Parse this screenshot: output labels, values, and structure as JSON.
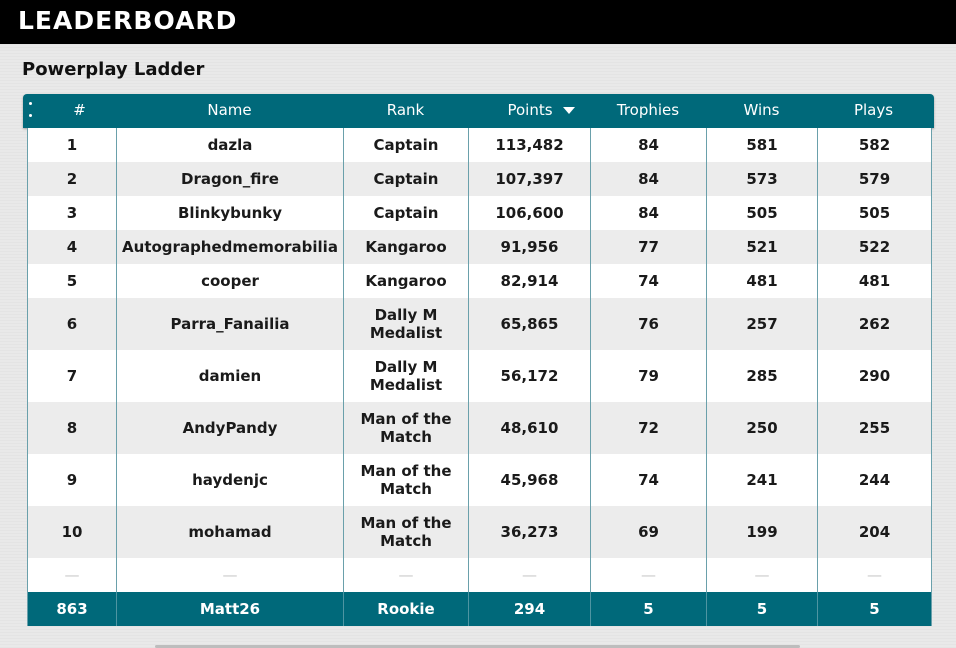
{
  "header": {
    "title": "LEADERBOARD"
  },
  "ladder": {
    "title": "Powerplay Ladder"
  },
  "table": {
    "columns": [
      "#",
      "Name",
      "Rank",
      "Points",
      "Trophies",
      "Wins",
      "Plays"
    ],
    "sorted_by": "Points",
    "rows": [
      {
        "pos": "1",
        "name": "dazla",
        "rank": "Captain",
        "points": "113,482",
        "trophies": "84",
        "wins": "581",
        "plays": "582"
      },
      {
        "pos": "2",
        "name": "Dragon_fire",
        "rank": "Captain",
        "points": "107,397",
        "trophies": "84",
        "wins": "573",
        "plays": "579"
      },
      {
        "pos": "3",
        "name": "Blinkybunky",
        "rank": "Captain",
        "points": "106,600",
        "trophies": "84",
        "wins": "505",
        "plays": "505"
      },
      {
        "pos": "4",
        "name": "Autographedmemorabilia",
        "rank": "Kangaroo",
        "points": "91,956",
        "trophies": "77",
        "wins": "521",
        "plays": "522"
      },
      {
        "pos": "5",
        "name": "cooper",
        "rank": "Kangaroo",
        "points": "82,914",
        "trophies": "74",
        "wins": "481",
        "plays": "481"
      },
      {
        "pos": "6",
        "name": "Parra_Fanailia",
        "rank": "Dally M Medalist",
        "points": "65,865",
        "trophies": "76",
        "wins": "257",
        "plays": "262"
      },
      {
        "pos": "7",
        "name": "damien",
        "rank": "Dally M Medalist",
        "points": "56,172",
        "trophies": "79",
        "wins": "285",
        "plays": "290"
      },
      {
        "pos": "8",
        "name": "AndyPandy",
        "rank": "Man of the Match",
        "points": "48,610",
        "trophies": "72",
        "wins": "250",
        "plays": "255"
      },
      {
        "pos": "9",
        "name": "haydenjc",
        "rank": "Man of the Match",
        "points": "45,968",
        "trophies": "74",
        "wins": "241",
        "plays": "244"
      },
      {
        "pos": "10",
        "name": "mohamad",
        "rank": "Man of the Match",
        "points": "36,273",
        "trophies": "69",
        "wins": "199",
        "plays": "204"
      }
    ],
    "separator": [
      "—",
      "—",
      "—",
      "—",
      "—",
      "—",
      "—"
    ],
    "me": {
      "pos": "863",
      "name": "Matt26",
      "rank": "Rookie",
      "points": "294",
      "trophies": "5",
      "wins": "5",
      "plays": "5"
    }
  },
  "colors": {
    "accent": "#00697a",
    "row_alt": "#ececec",
    "topbar": "#000000"
  }
}
